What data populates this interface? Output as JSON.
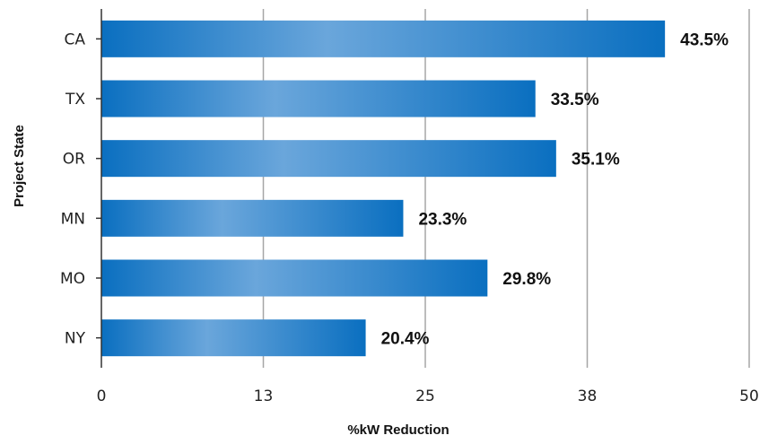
{
  "chart_data": {
    "type": "bar",
    "orientation": "horizontal",
    "categories": [
      "CA",
      "TX",
      "OR",
      "MN",
      "MO",
      "NY"
    ],
    "values": [
      43.5,
      33.5,
      35.1,
      23.3,
      29.8,
      20.4
    ],
    "value_labels": [
      "43.5%",
      "33.5%",
      "35.1%",
      "23.3%",
      "29.8%",
      "20.4%"
    ],
    "title": "",
    "xlabel": "%kW Reduction",
    "ylabel": "Project State",
    "xlim": [
      0,
      50
    ],
    "xticks": [
      0,
      12.5,
      25,
      37.5,
      50
    ],
    "xtick_labels": [
      "0",
      "13",
      "25",
      "38",
      "50"
    ],
    "grid": "vertical",
    "legend": "none",
    "colors": {
      "bar_dark": "#0a6fc0",
      "bar_light": "#6aa6db",
      "grid": "#a6a6a6",
      "axis": "#333333"
    }
  }
}
